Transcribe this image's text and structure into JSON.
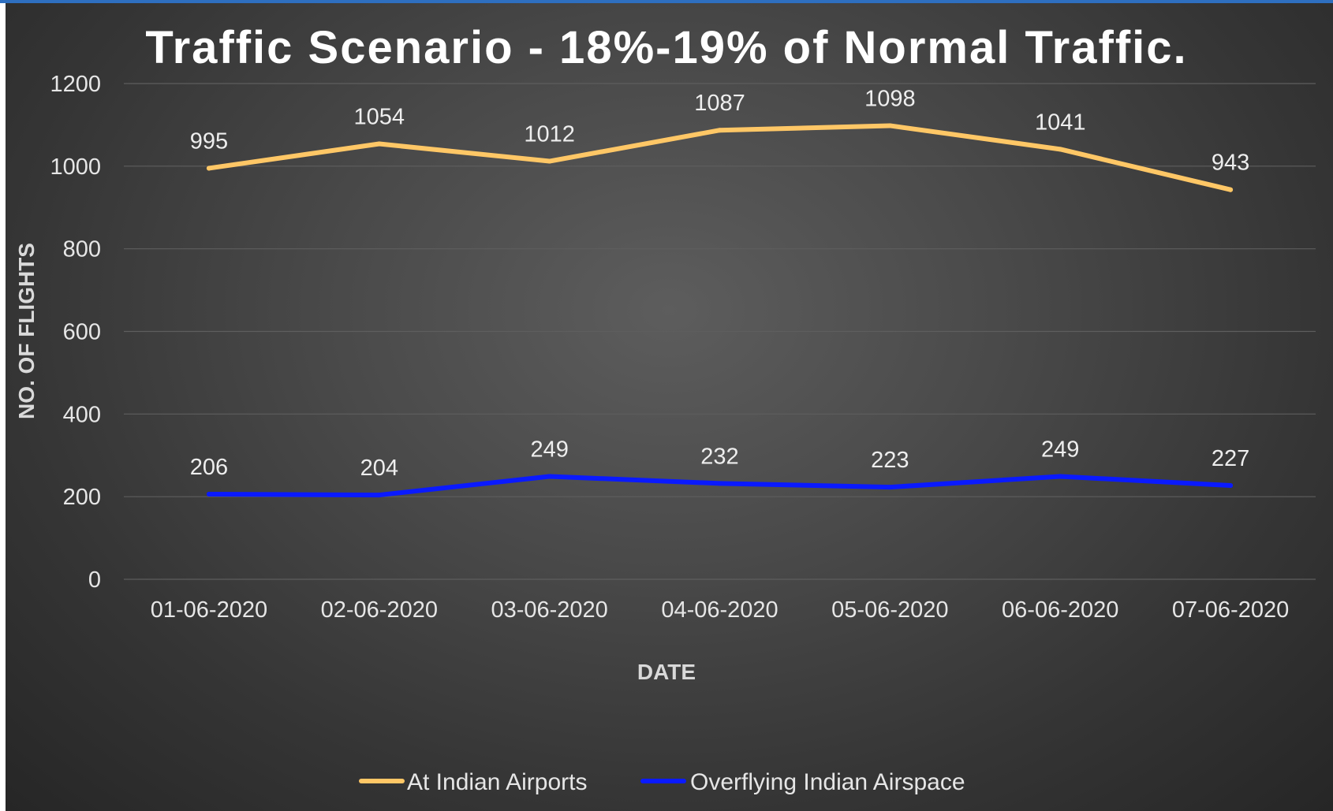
{
  "chart_data": {
    "type": "line",
    "title": "Traffic Scenario - 18%-19% of Normal Traffic.",
    "xlabel": "DATE",
    "ylabel": "NO. OF FLIGHTS",
    "categories": [
      "01-06-2020",
      "02-06-2020",
      "03-06-2020",
      "04-06-2020",
      "05-06-2020",
      "06-06-2020",
      "07-06-2020"
    ],
    "ylim": [
      0,
      1200
    ],
    "yticks": [
      0,
      200,
      400,
      600,
      800,
      1000,
      1200
    ],
    "grid": true,
    "legend_position": "bottom",
    "series": [
      {
        "name": "At Indian Airports",
        "color": "#ffc766",
        "values": [
          995,
          1054,
          1012,
          1087,
          1098,
          1041,
          943
        ]
      },
      {
        "name": "Overflying Indian Airspace",
        "color": "#0a1aff",
        "values": [
          206,
          204,
          249,
          232,
          223,
          249,
          227
        ]
      }
    ]
  }
}
